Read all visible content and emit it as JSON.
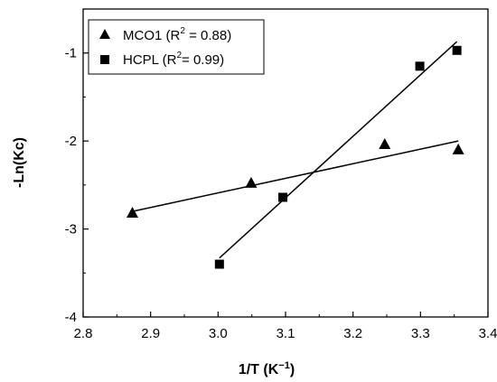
{
  "chart_data": {
    "type": "scatter",
    "xlabel": "1/T (K",
    "xlabel_sup": "−1",
    "xlabel_close": ")",
    "ylabel": "-Ln(Kc)",
    "xlim": [
      2.8,
      3.4
    ],
    "ylim": [
      -4,
      -0.5
    ],
    "x_ticks": [
      2.8,
      2.9,
      3.0,
      3.1,
      3.2,
      3.3,
      3.4
    ],
    "x_tick_labels": [
      "2.8",
      "2.9",
      "3.0",
      "3.1",
      "3.2",
      "3.3",
      "3.4"
    ],
    "y_ticks": [
      -4,
      -3,
      -2,
      -1
    ],
    "y_tick_labels": [
      "-4",
      "-3",
      "-2",
      "-1"
    ],
    "grid": false,
    "legend_position": "top-left",
    "series": [
      {
        "name": "MCO1",
        "legend_pre": "MCO1 (R",
        "legend_sup": "2",
        "legend_post": " = 0.88)",
        "marker": "triangle",
        "color": "#000000",
        "points": [
          {
            "x": 2.873,
            "y": -2.82
          },
          {
            "x": 3.049,
            "y": -2.48
          },
          {
            "x": 3.247,
            "y": -2.04
          },
          {
            "x": 3.356,
            "y": -2.1
          }
        ],
        "fit": [
          {
            "x": 2.873,
            "y": -2.8
          },
          {
            "x": 3.356,
            "y": -2.0
          }
        ]
      },
      {
        "name": "HCPL",
        "legend_pre": "HCPL (R",
        "legend_sup": "2",
        "legend_post": "= 0.99)",
        "marker": "square",
        "color": "#000000",
        "points": [
          {
            "x": 3.002,
            "y": -3.4
          },
          {
            "x": 3.096,
            "y": -2.64
          },
          {
            "x": 3.299,
            "y": -1.15
          },
          {
            "x": 3.354,
            "y": -0.97
          }
        ],
        "fit": [
          {
            "x": 3.002,
            "y": -3.33
          },
          {
            "x": 3.354,
            "y": -0.87
          }
        ]
      }
    ]
  }
}
